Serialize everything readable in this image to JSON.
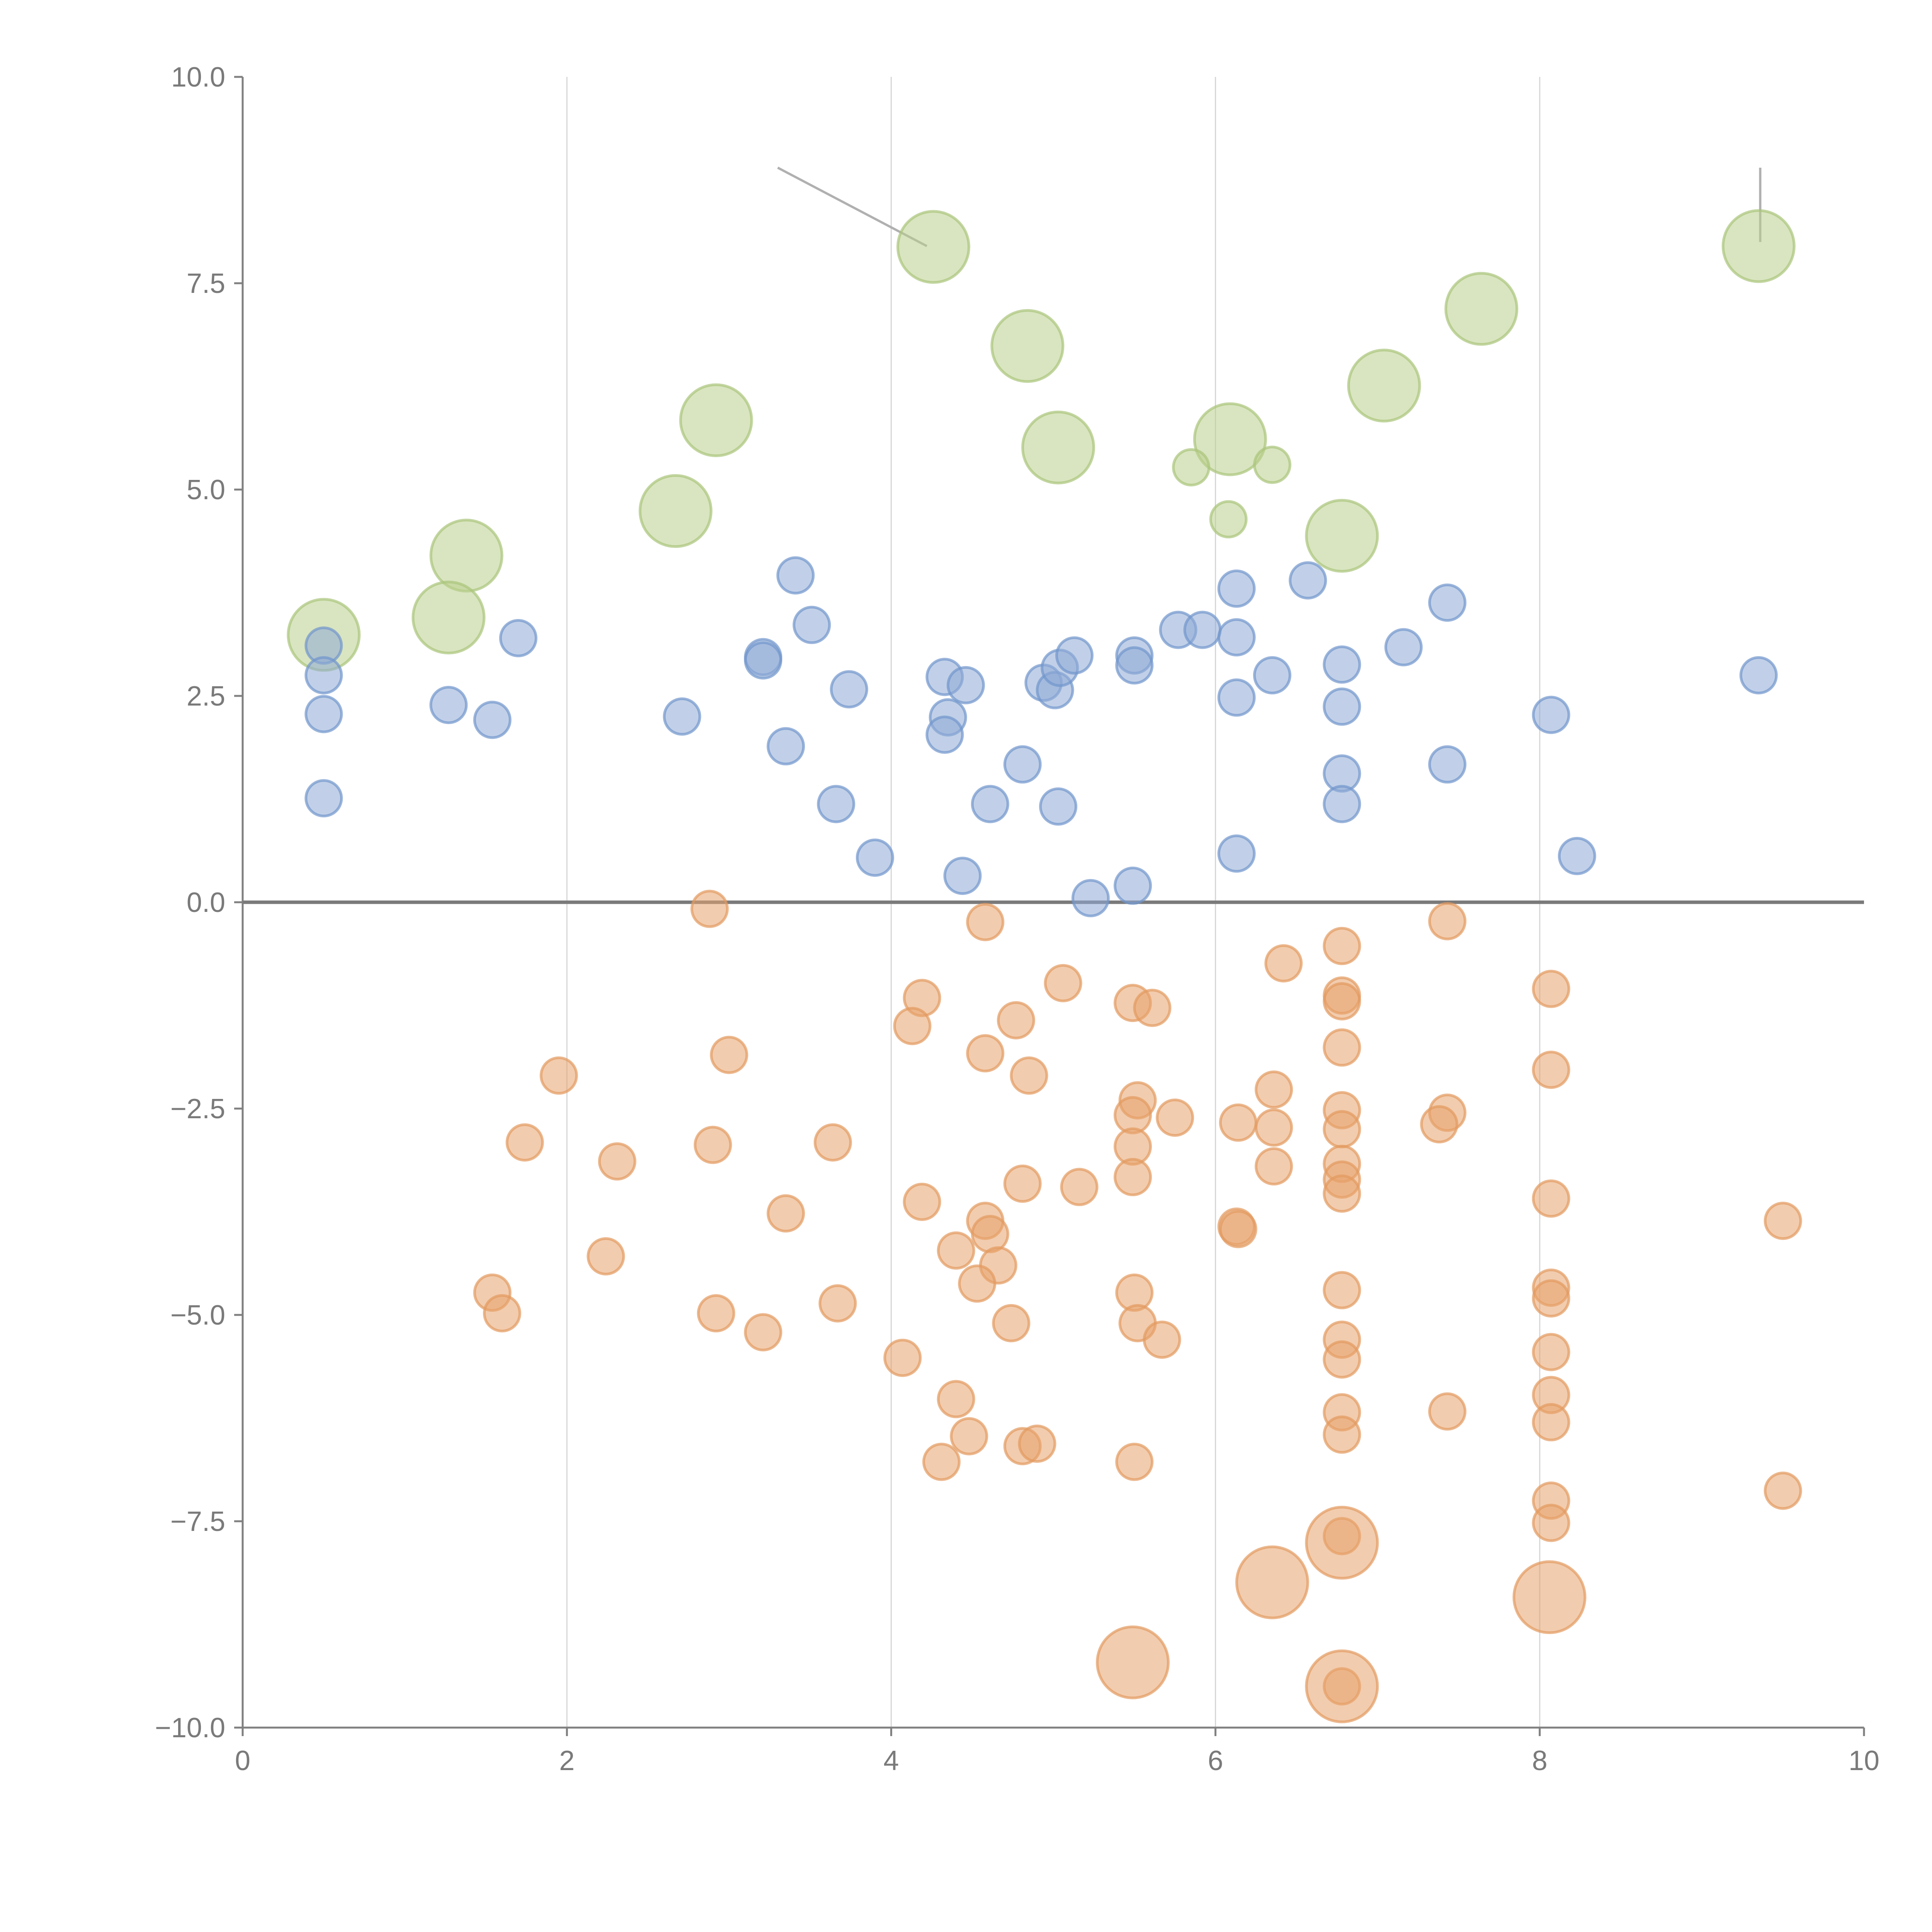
{
  "chart_data": {
    "type": "scatter",
    "title": "",
    "xlabel": "",
    "ylabel": "",
    "xlim": [
      0,
      10
    ],
    "ylim": [
      -10,
      10
    ],
    "grid": "vertical",
    "x_ticks": [
      "0",
      "2",
      "4",
      "6",
      "8",
      "10"
    ],
    "x_tick_values": [
      0,
      2,
      4,
      6,
      8,
      10
    ],
    "y_ticks": [
      "10.0",
      "7.5",
      "5.0",
      "2.5",
      "0.0",
      "−2.5",
      "−5.0",
      "−7.5",
      "−10.0"
    ],
    "y_tick_values": [
      10,
      7.5,
      5,
      2.5,
      0,
      -2.5,
      -5,
      -7.5,
      -10
    ],
    "series": [
      {
        "name": "green",
        "color": "#b9d08c",
        "stroke": "#a9c47a",
        "points": [
          [
            0.5,
            3.24,
            2
          ],
          [
            1.38,
            4.2,
            2
          ],
          [
            1.27,
            3.45,
            2
          ],
          [
            2.67,
            4.74,
            2
          ],
          [
            2.92,
            5.84,
            2
          ],
          [
            4.26,
            7.94,
            2
          ],
          [
            4.84,
            6.74,
            2
          ],
          [
            5.03,
            5.51,
            2
          ],
          [
            6.09,
            5.61,
            2
          ],
          [
            5.85,
            5.27,
            1
          ],
          [
            6.35,
            5.3,
            1
          ],
          [
            6.08,
            4.64,
            1
          ],
          [
            6.78,
            4.44,
            2
          ],
          [
            7.04,
            6.26,
            2
          ],
          [
            7.64,
            7.19,
            2
          ],
          [
            9.35,
            7.95,
            2
          ]
        ]
      },
      {
        "name": "blue",
        "color": "#8eaad6",
        "stroke": "#7096cc",
        "points": [
          [
            0.5,
            3.11,
            1
          ],
          [
            0.5,
            2.75,
            1
          ],
          [
            0.5,
            2.28,
            1
          ],
          [
            0.5,
            1.26,
            1
          ],
          [
            1.27,
            2.39,
            1
          ],
          [
            1.54,
            2.21,
            1
          ],
          [
            1.7,
            3.2,
            1
          ],
          [
            2.71,
            2.25,
            1
          ],
          [
            3.21,
            2.97,
            1
          ],
          [
            3.21,
            2.93,
            1
          ],
          [
            3.35,
            1.89,
            1
          ],
          [
            3.41,
            3.96,
            1
          ],
          [
            3.51,
            3.36,
            1
          ],
          [
            3.74,
            2.58,
            1
          ],
          [
            3.66,
            1.19,
            1
          ],
          [
            3.9,
            0.54,
            1
          ],
          [
            4.33,
            2.73,
            1
          ],
          [
            4.35,
            2.24,
            1
          ],
          [
            4.33,
            2.03,
            1
          ],
          [
            4.46,
            2.63,
            1
          ],
          [
            4.44,
            0.32,
            1
          ],
          [
            4.61,
            1.19,
            1
          ],
          [
            4.81,
            1.67,
            1
          ],
          [
            4.94,
            2.66,
            1
          ],
          [
            5.01,
            2.57,
            1
          ],
          [
            5.04,
            2.84,
            1
          ],
          [
            5.13,
            2.99,
            1
          ],
          [
            5.03,
            1.16,
            1
          ],
          [
            5.23,
            0.05,
            1
          ],
          [
            5.5,
            2.99,
            1
          ],
          [
            5.5,
            2.87,
            1
          ],
          [
            5.49,
            0.2,
            1
          ],
          [
            5.77,
            3.3,
            1
          ],
          [
            5.92,
            3.3,
            1
          ],
          [
            6.13,
            3.8,
            1
          ],
          [
            6.13,
            3.21,
            1
          ],
          [
            6.13,
            2.48,
            1
          ],
          [
            6.13,
            0.59,
            1
          ],
          [
            6.35,
            2.75,
            1
          ],
          [
            6.57,
            3.9,
            1
          ],
          [
            6.78,
            2.88,
            1
          ],
          [
            6.78,
            2.37,
            1
          ],
          [
            6.78,
            1.56,
            1
          ],
          [
            6.78,
            1.19,
            1
          ],
          [
            7.16,
            3.09,
            1
          ],
          [
            7.43,
            3.63,
            1
          ],
          [
            7.43,
            1.67,
            1
          ],
          [
            8.07,
            2.27,
            1
          ],
          [
            8.23,
            0.56,
            1
          ],
          [
            9.35,
            2.75,
            1
          ]
        ]
      },
      {
        "name": "orange",
        "color": "#e8a36c",
        "stroke": "#e29a60",
        "points": [
          [
            2.88,
            -0.08,
            1
          ],
          [
            4.58,
            -0.24,
            1
          ],
          [
            7.43,
            -0.23,
            1
          ],
          [
            6.42,
            -0.74,
            1
          ],
          [
            6.78,
            -0.53,
            1
          ],
          [
            5.06,
            -0.98,
            1
          ],
          [
            8.07,
            -1.05,
            1
          ],
          [
            4.19,
            -1.16,
            1
          ],
          [
            4.13,
            -1.5,
            1
          ],
          [
            5.49,
            -1.22,
            1
          ],
          [
            5.61,
            -1.28,
            1
          ],
          [
            6.78,
            -1.13,
            1
          ],
          [
            6.78,
            -1.2,
            1
          ],
          [
            4.77,
            -1.43,
            1
          ],
          [
            4.58,
            -1.83,
            1
          ],
          [
            3.0,
            -1.85,
            1
          ],
          [
            6.78,
            -1.76,
            1
          ],
          [
            1.95,
            -2.1,
            1
          ],
          [
            4.85,
            -2.1,
            1
          ],
          [
            8.07,
            -2.03,
            1
          ],
          [
            6.36,
            -2.27,
            1
          ],
          [
            5.52,
            -2.4,
            1
          ],
          [
            5.49,
            -2.58,
            1
          ],
          [
            5.75,
            -2.61,
            1
          ],
          [
            6.14,
            -2.67,
            1
          ],
          [
            6.36,
            -2.73,
            1
          ],
          [
            6.78,
            -2.52,
            1
          ],
          [
            6.78,
            -2.75,
            1
          ],
          [
            7.43,
            -2.55,
            1
          ],
          [
            7.38,
            -2.69,
            1
          ],
          [
            1.74,
            -2.91,
            1
          ],
          [
            2.9,
            -2.94,
            1
          ],
          [
            3.64,
            -2.91,
            1
          ],
          [
            2.31,
            -3.14,
            1
          ],
          [
            5.49,
            -2.96,
            1
          ],
          [
            6.36,
            -3.2,
            1
          ],
          [
            6.78,
            -3.17,
            1
          ],
          [
            6.78,
            -3.36,
            1
          ],
          [
            6.78,
            -3.53,
            1
          ],
          [
            5.49,
            -3.33,
            1
          ],
          [
            5.16,
            -3.45,
            1
          ],
          [
            4.81,
            -3.41,
            1
          ],
          [
            4.19,
            -3.63,
            1
          ],
          [
            3.35,
            -3.77,
            1
          ],
          [
            8.07,
            -3.59,
            1
          ],
          [
            9.5,
            -3.86,
            1
          ],
          [
            4.58,
            -3.86,
            1
          ],
          [
            4.61,
            -4.02,
            1
          ],
          [
            6.13,
            -3.93,
            1
          ],
          [
            6.14,
            -3.96,
            1
          ],
          [
            4.4,
            -4.22,
            1
          ],
          [
            4.66,
            -4.4,
            1
          ],
          [
            2.24,
            -4.29,
            1
          ],
          [
            4.53,
            -4.62,
            1
          ],
          [
            1.54,
            -4.73,
            1
          ],
          [
            1.6,
            -4.98,
            1
          ],
          [
            2.92,
            -4.98,
            1
          ],
          [
            3.67,
            -4.86,
            1
          ],
          [
            5.5,
            -4.73,
            1
          ],
          [
            6.78,
            -4.7,
            1
          ],
          [
            8.07,
            -4.67,
            1
          ],
          [
            8.07,
            -4.8,
            1
          ],
          [
            3.21,
            -5.21,
            1
          ],
          [
            4.74,
            -5.1,
            1
          ],
          [
            5.52,
            -5.1,
            1
          ],
          [
            5.67,
            -5.3,
            1
          ],
          [
            6.78,
            -5.3,
            1
          ],
          [
            6.78,
            -5.54,
            1
          ],
          [
            8.07,
            -5.45,
            1
          ],
          [
            4.07,
            -5.52,
            1
          ],
          [
            4.4,
            -6.02,
            1
          ],
          [
            8.07,
            -5.97,
            1
          ],
          [
            8.07,
            -6.3,
            1
          ],
          [
            6.78,
            -6.18,
            1
          ],
          [
            6.78,
            -6.45,
            1
          ],
          [
            7.43,
            -6.17,
            1
          ],
          [
            4.48,
            -6.47,
            1
          ],
          [
            4.81,
            -6.59,
            1
          ],
          [
            4.9,
            -6.56,
            1
          ],
          [
            4.31,
            -6.78,
            1
          ],
          [
            5.5,
            -6.78,
            1
          ],
          [
            9.5,
            -7.13,
            1
          ],
          [
            8.07,
            -7.25,
            1
          ],
          [
            8.07,
            -7.52,
            1
          ],
          [
            6.78,
            -7.68,
            1
          ],
          [
            6.78,
            -9.5,
            1
          ],
          [
            6.78,
            -7.76,
            2
          ],
          [
            6.35,
            -8.24,
            2
          ],
          [
            8.06,
            -8.42,
            2
          ],
          [
            5.49,
            -9.21,
            2
          ],
          [
            6.78,
            -9.5,
            2
          ]
        ]
      }
    ],
    "annotation_lines": [
      {
        "from": [
          3.3,
          8.9
        ],
        "to": [
          4.22,
          7.95
        ]
      },
      {
        "from": [
          9.36,
          8.9
        ],
        "to": [
          9.36,
          8.0
        ]
      }
    ]
  }
}
